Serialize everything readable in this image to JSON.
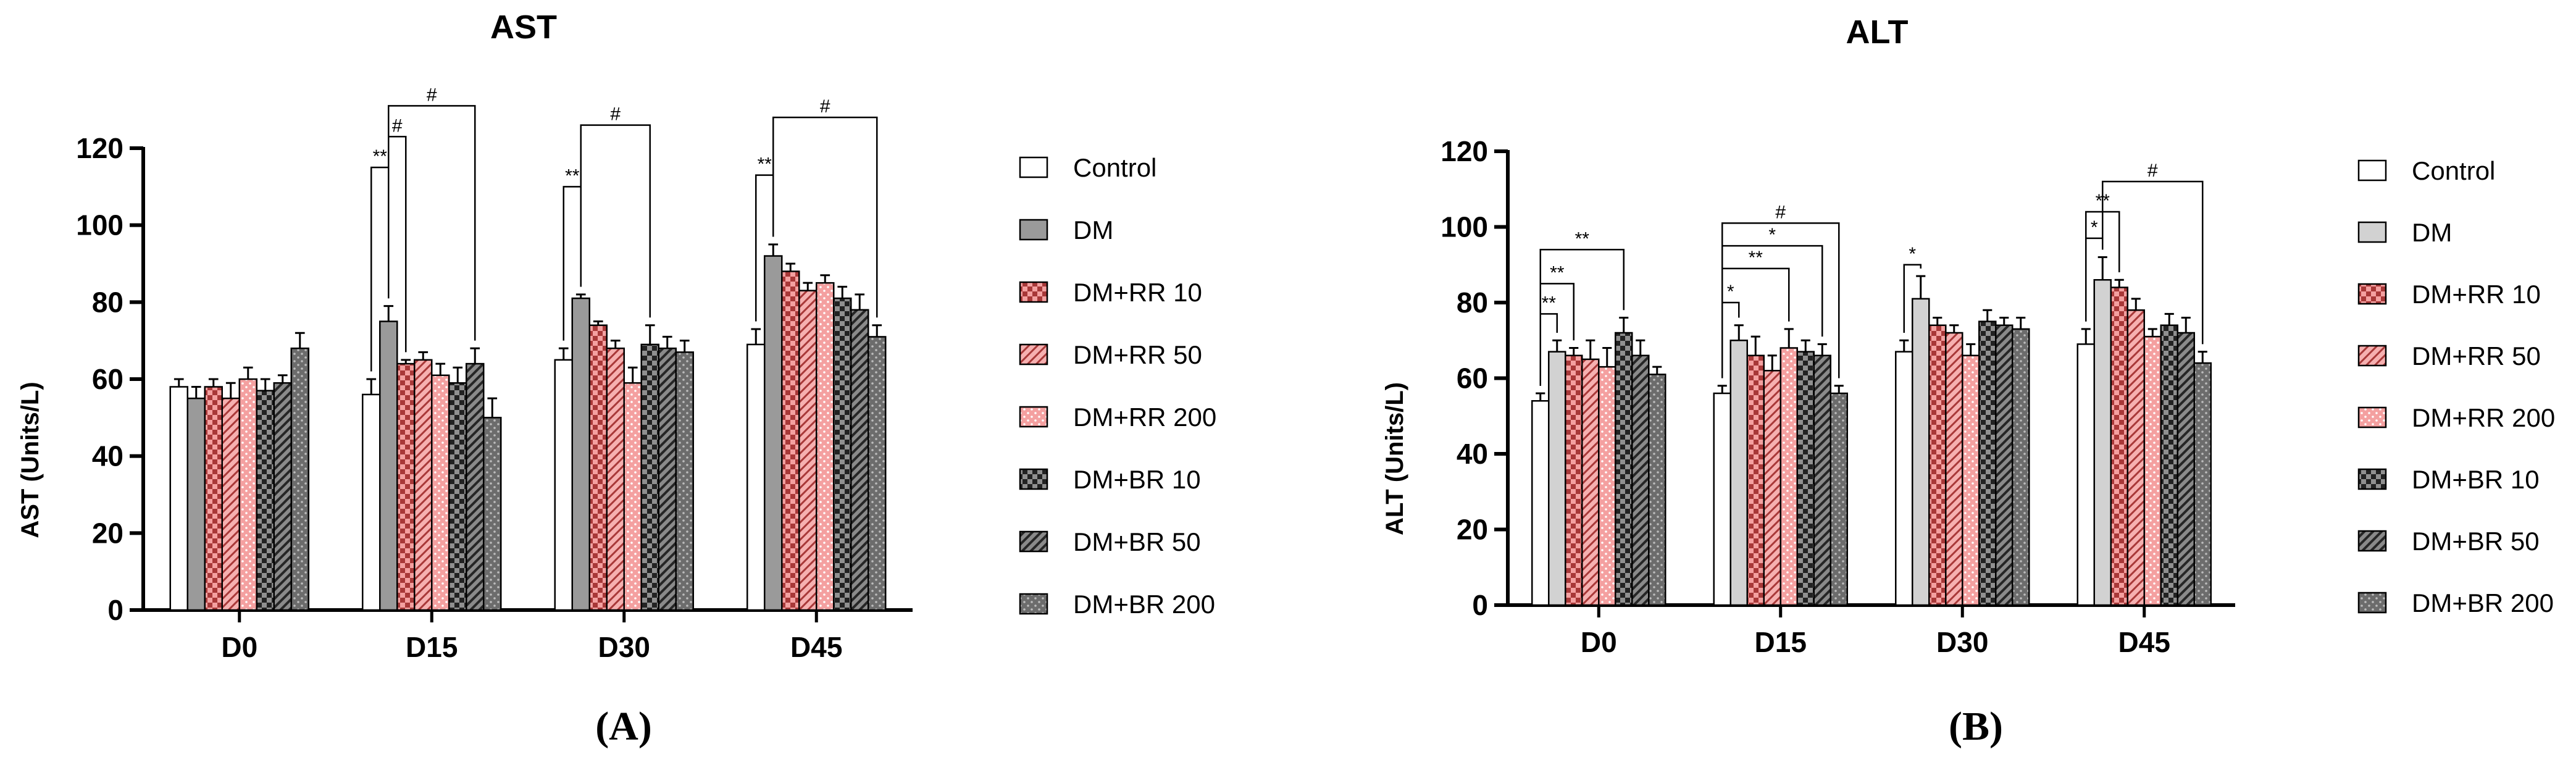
{
  "figure": {
    "panel_a_label": "(A)",
    "panel_b_label": "(B)"
  },
  "legend": {
    "entries": [
      "Control",
      "DM",
      "DM+RR 10",
      "DM+RR 50",
      "DM+RR 200",
      "DM+BR 10",
      "DM+BR 50",
      "DM+BR 200"
    ]
  },
  "colors": {
    "control": "#ffffff",
    "dm_ast": "#9a9a9a",
    "dm_alt": "#d2d2d2",
    "rr_pink": "#f4a0a0",
    "rr_dark": "#a83838",
    "br_dark": "#444444",
    "br_mid": "#707070",
    "axis": "#000000"
  },
  "chart_data": [
    {
      "type": "bar",
      "title": "AST",
      "xlabel": "",
      "ylabel": "AST (Units/L)",
      "ylim": [
        0,
        120
      ],
      "yticks": [
        "0",
        "20",
        "40",
        "60",
        "80",
        "100",
        "120"
      ],
      "categories": [
        "D0",
        "D15",
        "D30",
        "D45"
      ],
      "series": [
        {
          "name": "Control",
          "values": [
            58,
            56,
            65,
            69
          ],
          "errors": [
            2,
            4,
            3,
            4
          ]
        },
        {
          "name": "DM",
          "values": [
            55,
            75,
            81,
            92
          ],
          "errors": [
            3,
            4,
            1,
            3
          ]
        },
        {
          "name": "DM+RR 10",
          "values": [
            58,
            64,
            74,
            88
          ],
          "errors": [
            2,
            1,
            1,
            2
          ]
        },
        {
          "name": "DM+RR 50",
          "values": [
            55,
            65,
            68,
            83
          ],
          "errors": [
            4,
            2,
            2,
            2
          ]
        },
        {
          "name": "DM+RR 200",
          "values": [
            60,
            61,
            59,
            85
          ],
          "errors": [
            3,
            3,
            4,
            2
          ]
        },
        {
          "name": "DM+BR 10",
          "values": [
            57,
            59,
            69,
            81
          ],
          "errors": [
            3,
            4,
            5,
            3
          ]
        },
        {
          "name": "DM+BR 50",
          "values": [
            59,
            64,
            68,
            78
          ],
          "errors": [
            2,
            4,
            3,
            4
          ]
        },
        {
          "name": "DM+BR 200",
          "values": [
            68,
            50,
            67,
            71
          ],
          "errors": [
            4,
            5,
            3,
            3
          ]
        }
      ],
      "significance": [
        {
          "category": "D15",
          "from": "Control",
          "to": "DM",
          "label": "**",
          "level": 115
        },
        {
          "category": "D15",
          "from": "DM",
          "to": "DM+RR 10",
          "label": "#",
          "level": 123
        },
        {
          "category": "D15",
          "from": "DM",
          "to": "DM+BR 50",
          "label": "#",
          "level": 131
        },
        {
          "category": "D30",
          "from": "Control",
          "to": "DM",
          "label": "**",
          "level": 110
        },
        {
          "category": "D30",
          "from": "DM",
          "to": "DM+BR 10",
          "label": "#",
          "level": 126
        },
        {
          "category": "D45",
          "from": "Control",
          "to": "DM",
          "label": "**",
          "level": 113
        },
        {
          "category": "D45",
          "from": "DM",
          "to": "DM+BR 200",
          "label": "#",
          "level": 128
        }
      ]
    },
    {
      "type": "bar",
      "title": "ALT",
      "xlabel": "",
      "ylabel": "ALT (Units/L)",
      "ylim": [
        0,
        120
      ],
      "yticks": [
        "0",
        "20",
        "40",
        "60",
        "80",
        "100",
        "120"
      ],
      "categories": [
        "D0",
        "D15",
        "D30",
        "D45"
      ],
      "series": [
        {
          "name": "Control",
          "values": [
            54,
            56,
            67,
            69
          ],
          "errors": [
            2,
            2,
            3,
            4
          ]
        },
        {
          "name": "DM",
          "values": [
            67,
            70,
            81,
            86
          ],
          "errors": [
            3,
            4,
            6,
            6
          ]
        },
        {
          "name": "DM+RR 10",
          "values": [
            66,
            66,
            74,
            84
          ],
          "errors": [
            2,
            5,
            2,
            2
          ]
        },
        {
          "name": "DM+RR 50",
          "values": [
            65,
            62,
            72,
            78
          ],
          "errors": [
            5,
            4,
            2,
            3
          ]
        },
        {
          "name": "DM+RR 200",
          "values": [
            63,
            68,
            66,
            71
          ],
          "errors": [
            5,
            5,
            3,
            2
          ]
        },
        {
          "name": "DM+BR 10",
          "values": [
            72,
            67,
            75,
            74
          ],
          "errors": [
            4,
            3,
            3,
            3
          ]
        },
        {
          "name": "DM+BR 50",
          "values": [
            66,
            66,
            74,
            72
          ],
          "errors": [
            4,
            3,
            2,
            4
          ]
        },
        {
          "name": "DM+BR 200",
          "values": [
            61,
            56,
            73,
            64
          ],
          "errors": [
            2,
            2,
            3,
            3
          ]
        }
      ],
      "significance": [
        {
          "category": "D0",
          "from": "Control",
          "to": "DM",
          "label": "**",
          "level": 77
        },
        {
          "category": "D0",
          "from": "Control",
          "to": "DM+RR 10",
          "label": "**",
          "level": 85
        },
        {
          "category": "D0",
          "from": "Control",
          "to": "DM+BR 10",
          "label": "**",
          "level": 94
        },
        {
          "category": "D15",
          "from": "Control",
          "to": "DM",
          "label": "*",
          "level": 80
        },
        {
          "category": "D15",
          "from": "Control",
          "to": "DM+RR 200",
          "label": "**",
          "level": 89
        },
        {
          "category": "D15",
          "from": "Control",
          "to": "DM+BR 50",
          "label": "*",
          "level": 95
        },
        {
          "category": "D15",
          "from": "Control",
          "to": "DM+BR 200",
          "label": "#",
          "level": 101
        },
        {
          "category": "D30",
          "from": "Control",
          "to": "DM",
          "label": "*",
          "level": 90
        },
        {
          "category": "D45",
          "from": "Control",
          "to": "DM",
          "label": "*",
          "level": 97
        },
        {
          "category": "D45",
          "from": "Control",
          "to": "DM+RR 10",
          "label": "**",
          "level": 104
        },
        {
          "category": "D45",
          "from": "DM",
          "to": "DM+BR 200",
          "label": "#",
          "level": 112
        }
      ]
    }
  ]
}
